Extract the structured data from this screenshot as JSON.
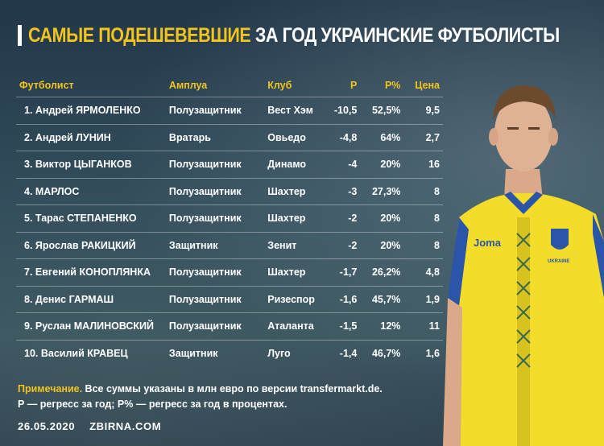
{
  "title": {
    "highlight": "САМЫЕ ПОДЕШЕВЕВШИЕ",
    "rest": "ЗА ГОД УКРАИНСКИЕ ФУТБОЛИСТЫ"
  },
  "table": {
    "headers": [
      "Футболист",
      "Амплуа",
      "Клуб",
      "Р",
      "Р%",
      "Цена"
    ],
    "rows": [
      {
        "name": "1. Андрей ЯРМОЛЕНКО",
        "position": "Полузащитник",
        "club": "Вест Хэм",
        "r": "-10,5",
        "rp": "52,5%",
        "price": "9,5"
      },
      {
        "name": "2. Андрей ЛУНИН",
        "position": "Вратарь",
        "club": "Овьедо",
        "r": "-4,8",
        "rp": "64%",
        "price": "2,7"
      },
      {
        "name": "3. Виктор ЦЫГАНКОВ",
        "position": "Полузащитник",
        "club": "Динамо",
        "r": "-4",
        "rp": "20%",
        "price": "16"
      },
      {
        "name": "4. МАРЛОС",
        "position": "Полузащитник",
        "club": "Шахтер",
        "r": "-3",
        "rp": "27,3%",
        "price": "8"
      },
      {
        "name": "5. Тарас СТЕПАНЕНКО",
        "position": "Полузащитник",
        "club": "Шахтер",
        "r": "-2",
        "rp": "20%",
        "price": "8"
      },
      {
        "name": "6. Ярослав РАКИЦКИЙ",
        "position": "Защитник",
        "club": "Зенит",
        "r": "-2",
        "rp": "20%",
        "price": "8"
      },
      {
        "name": "7. Евгений КОНОПЛЯНКА",
        "position": "Полузащитник",
        "club": "Шахтер",
        "r": "-1,7",
        "rp": "26,2%",
        "price": "4,8"
      },
      {
        "name": "8. Денис ГАРМАШ",
        "position": "Полузащитник",
        "club": "Ризеспор",
        "r": "-1,6",
        "rp": "45,7%",
        "price": "1,9"
      },
      {
        "name": "9. Руслан МАЛИНОВСКИЙ",
        "position": "Полузащитник",
        "club": "Аталанта",
        "r": "-1,5",
        "rp": "12%",
        "price": "11"
      },
      {
        "name": "10. Василий КРАВЕЦ",
        "position": "Защитник",
        "club": "Луго",
        "r": "-1,4",
        "rp": "46,7%",
        "price": "1,6"
      }
    ]
  },
  "note": {
    "label": "Примечание.",
    "line1": "Все суммы указаны в млн евро по версии transfermarkt.de.",
    "line2": "Р — регресс за год; Р% — регресс за год в процентах."
  },
  "footer": {
    "date": "26.05.2020",
    "site": "ZBIRNA.COM"
  },
  "jersey": {
    "brand": "Joma",
    "crest_text": "UKRAINE"
  },
  "colors": {
    "accent": "#f2c41c",
    "background": "#2f4a5a",
    "jersey": "#f3dc2a"
  }
}
